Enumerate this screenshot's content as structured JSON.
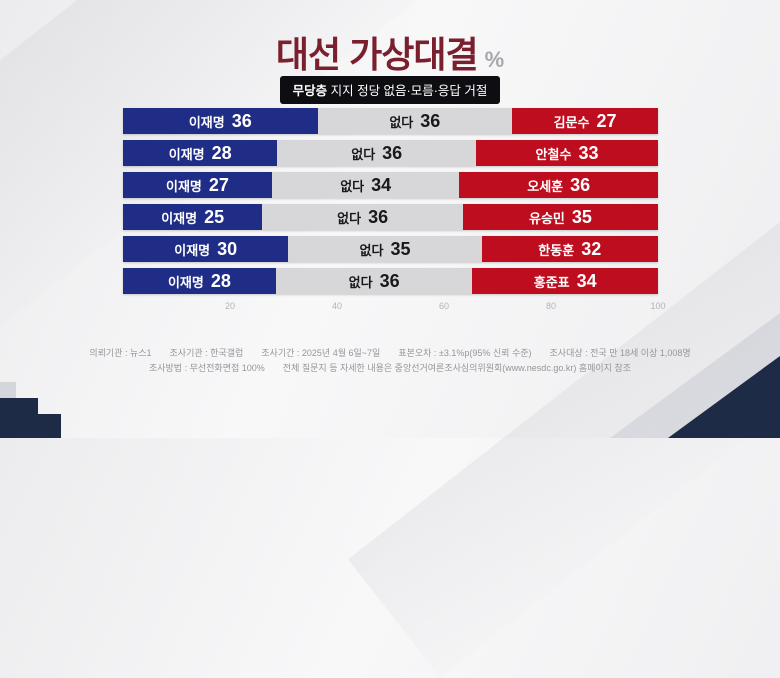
{
  "title": {
    "text": "대선 가상대결",
    "unit": "%"
  },
  "subtitle": {
    "bold": "무당층",
    "rest": " 지지 정당 없음·모름·응답 거절"
  },
  "chart_data": {
    "type": "bar",
    "variant": "horizontal-stacked",
    "xlim": [
      0,
      100
    ],
    "x_ticks": [
      "20",
      "40",
      "60",
      "80",
      "100"
    ],
    "series_colors": {
      "lee_jae_myung": "#202d87",
      "none_undecided": "#d7d7d9",
      "opponent": "#bd0d1e"
    },
    "rows": [
      {
        "left_label": "이재명",
        "left_value": 36,
        "mid_label": "없다",
        "mid_value": 36,
        "right_label": "김문수",
        "right_value": 27
      },
      {
        "left_label": "이재명",
        "left_value": 28,
        "mid_label": "없다",
        "mid_value": 36,
        "right_label": "안철수",
        "right_value": 33
      },
      {
        "left_label": "이재명",
        "left_value": 27,
        "mid_label": "없다",
        "mid_value": 34,
        "right_label": "오세훈",
        "right_value": 36
      },
      {
        "left_label": "이재명",
        "left_value": 25,
        "mid_label": "없다",
        "mid_value": 36,
        "right_label": "유승민",
        "right_value": 35
      },
      {
        "left_label": "이재명",
        "left_value": 30,
        "mid_label": "없다",
        "mid_value": 35,
        "right_label": "한동훈",
        "right_value": 32
      },
      {
        "left_label": "이재명",
        "left_value": 28,
        "mid_label": "없다",
        "mid_value": 36,
        "right_label": "홍준표",
        "right_value": 34
      }
    ]
  },
  "footer": {
    "line1": [
      "의뢰기관 : 뉴스1",
      "조사기관 : 한국갤럽",
      "조사기간 : 2025년 4월 6일~7일",
      "표본오차 : ±3.1%p(95% 신뢰 수준)",
      "조사대상 : 전국 만 18세 이상 1,008명"
    ],
    "line2": [
      "조사방법 : 무선전화면접 100%",
      "전체 질문지 등 자세한 내용은 중앙선거여론조사심의위원회(www.nesdc.go.kr) 홈페이지 참조"
    ]
  }
}
